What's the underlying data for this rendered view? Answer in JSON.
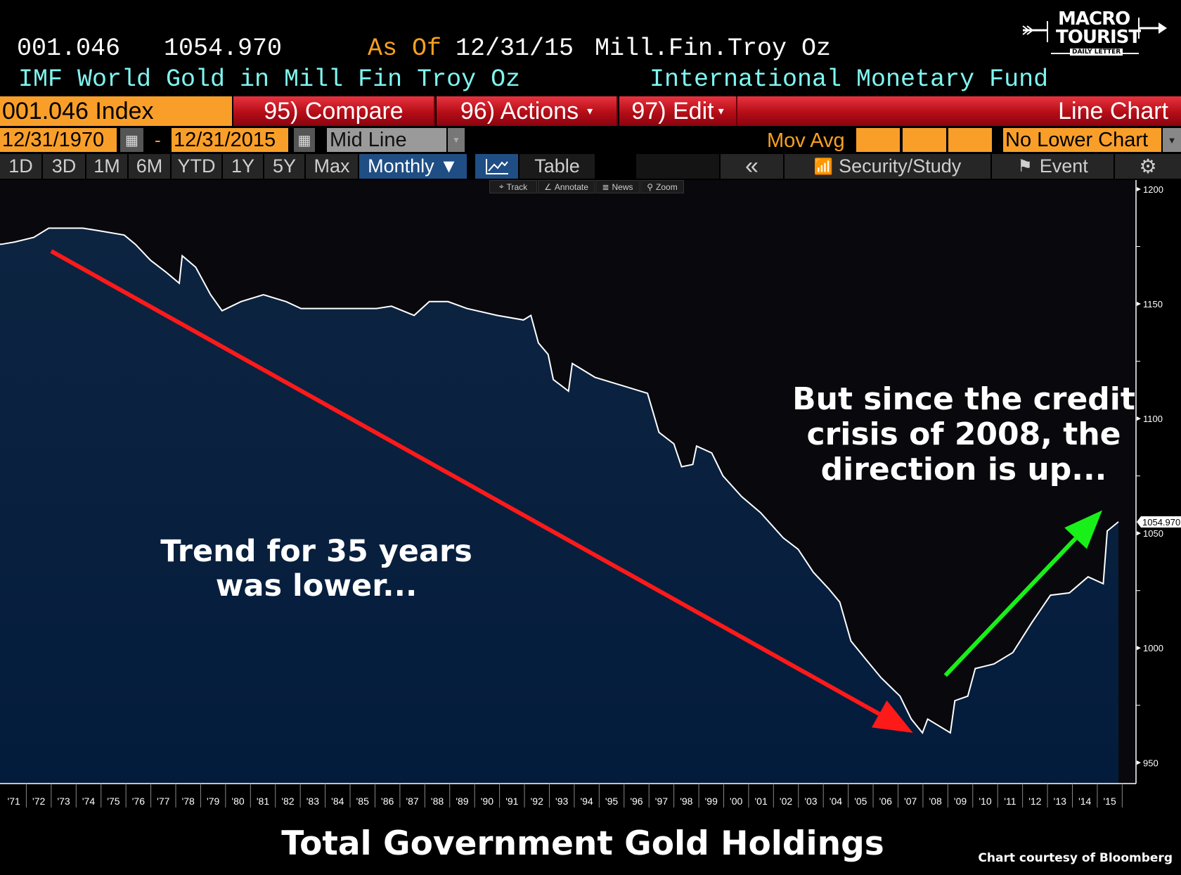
{
  "header": {
    "ticker": "001.046",
    "last_value": "1054.970",
    "as_of_label": "As Of",
    "as_of_date": "12/31/15",
    "units": "Mill.Fin.Troy Oz",
    "description": "IMF World Gold in Mill Fin Troy Oz",
    "source": "International Monetary Fund"
  },
  "logo": {
    "line1": "MACRO",
    "line2": "TOURIST",
    "line3": "DAILY LETTER"
  },
  "toolbar1": {
    "security": "001.046 Index",
    "compare": "95) Compare",
    "actions": "96) Actions",
    "edit": "97) Edit",
    "chart_type": "Line Chart"
  },
  "toolbar2": {
    "start_date": "12/31/1970",
    "dash": "-",
    "end_date": "12/31/2015",
    "line_type": "Mid Line",
    "mov_avg": "Mov Avg",
    "lower_chart": "No Lower Chart"
  },
  "toolbar3": {
    "ranges": [
      "1D",
      "3D",
      "1M",
      "6M",
      "YTD",
      "1Y",
      "5Y",
      "Max"
    ],
    "frequency": "Monthly ▼",
    "table": "Table",
    "collapse": "«",
    "security_study": "Security/Study",
    "event": "Event"
  },
  "tools": {
    "track": "Track",
    "annotate": "Annotate",
    "news": "News",
    "zoom": "Zoom"
  },
  "colors": {
    "fill_top": "#0d2441",
    "fill_bottom": "#041c3c",
    "line": "#ffffff",
    "red_arrow": "#ff1a1a",
    "green_arrow": "#19f019",
    "orange": "#f99f29"
  },
  "chart_data": {
    "type": "area",
    "title": "Total Government Gold Holdings",
    "credit": "Chart courtesy of Bloomberg",
    "ylabel": "Mill Fin Troy Oz",
    "ylim": [
      943,
      1206
    ],
    "xlim": [
      1971,
      2016
    ],
    "yticks": [
      "950",
      "1000",
      "1050",
      "1100",
      "1150",
      "1200"
    ],
    "xticks": [
      "'71",
      "'72",
      "'73",
      "'74",
      "'75",
      "'76",
      "'77",
      "'78",
      "'79",
      "'80",
      "'81",
      "'82",
      "'83",
      "'84",
      "'85",
      "'86",
      "'87",
      "'88",
      "'89",
      "'90",
      "'91",
      "'92",
      "'93",
      "'94",
      "'95",
      "'96",
      "'97",
      "'98",
      "'99",
      "'00",
      "'01",
      "'02",
      "'03",
      "'04",
      "'05",
      "'06",
      "'07",
      "'08",
      "'09",
      "'10",
      "'11",
      "'12",
      "'13",
      "'14",
      "'15"
    ],
    "last_value_label": "1054.970",
    "series": [
      {
        "name": "IMF World Gold",
        "points": [
          [
            1971.0,
            1176
          ],
          [
            1971.54,
            1177
          ],
          [
            1972.3,
            1179
          ],
          [
            1972.9,
            1183
          ],
          [
            1974.27,
            1183
          ],
          [
            1974.87,
            1182
          ],
          [
            1975.93,
            1180
          ],
          [
            1976.38,
            1176
          ],
          [
            1976.99,
            1169
          ],
          [
            1977.59,
            1164
          ],
          [
            1978.14,
            1159
          ],
          [
            1978.26,
            1171
          ],
          [
            1978.8,
            1166
          ],
          [
            1979.4,
            1154
          ],
          [
            1979.86,
            1147
          ],
          [
            1980.62,
            1151
          ],
          [
            1981.52,
            1154
          ],
          [
            1982.43,
            1151
          ],
          [
            1983.03,
            1148
          ],
          [
            1984.55,
            1148
          ],
          [
            1986.06,
            1148
          ],
          [
            1986.66,
            1149
          ],
          [
            1987.57,
            1145
          ],
          [
            1988.18,
            1151
          ],
          [
            1988.93,
            1151
          ],
          [
            1989.69,
            1148
          ],
          [
            1990.9,
            1145
          ],
          [
            1991.96,
            1143
          ],
          [
            1992.26,
            1145
          ],
          [
            1992.56,
            1133
          ],
          [
            1992.95,
            1128
          ],
          [
            1993.16,
            1117
          ],
          [
            1993.77,
            1112
          ],
          [
            1993.92,
            1124
          ],
          [
            1994.83,
            1118
          ],
          [
            1996.04,
            1114
          ],
          [
            1996.94,
            1111
          ],
          [
            1997.4,
            1094
          ],
          [
            1998.0,
            1089
          ],
          [
            1998.31,
            1079
          ],
          [
            1998.76,
            1080
          ],
          [
            1998.91,
            1088
          ],
          [
            1999.52,
            1085
          ],
          [
            1999.97,
            1075
          ],
          [
            2000.72,
            1066
          ],
          [
            2001.48,
            1059
          ],
          [
            2002.39,
            1048
          ],
          [
            2002.99,
            1043
          ],
          [
            2003.6,
            1033
          ],
          [
            2004.2,
            1026
          ],
          [
            2004.66,
            1020
          ],
          [
            2005.11,
            1003
          ],
          [
            2005.71,
            995
          ],
          [
            2006.32,
            987
          ],
          [
            2007.08,
            979
          ],
          [
            2007.53,
            969
          ],
          [
            2007.98,
            963
          ],
          [
            2008.19,
            969
          ],
          [
            2009.1,
            963
          ],
          [
            2009.28,
            977
          ],
          [
            2009.8,
            979
          ],
          [
            2010.1,
            991
          ],
          [
            2010.85,
            993
          ],
          [
            2011.61,
            998
          ],
          [
            2012.37,
            1011
          ],
          [
            2013.12,
            1023
          ],
          [
            2013.88,
            1024
          ],
          [
            2014.63,
            1031
          ],
          [
            2015.24,
            1028
          ],
          [
            2015.4,
            1051
          ],
          [
            2015.85,
            1054.97
          ]
        ]
      }
    ],
    "annotations": [
      {
        "text_lines": [
          "Trend for 35 years",
          "was lower..."
        ],
        "arrow": "red",
        "from": [
          1973,
          1173
        ],
        "to": [
          2007.6,
          963
        ]
      },
      {
        "text_lines": [
          "But since the credit",
          "crisis of 2008, the",
          "direction is up..."
        ],
        "arrow": "green",
        "from": [
          2008.9,
          988
        ],
        "to": [
          2015.2,
          1060
        ]
      }
    ]
  }
}
